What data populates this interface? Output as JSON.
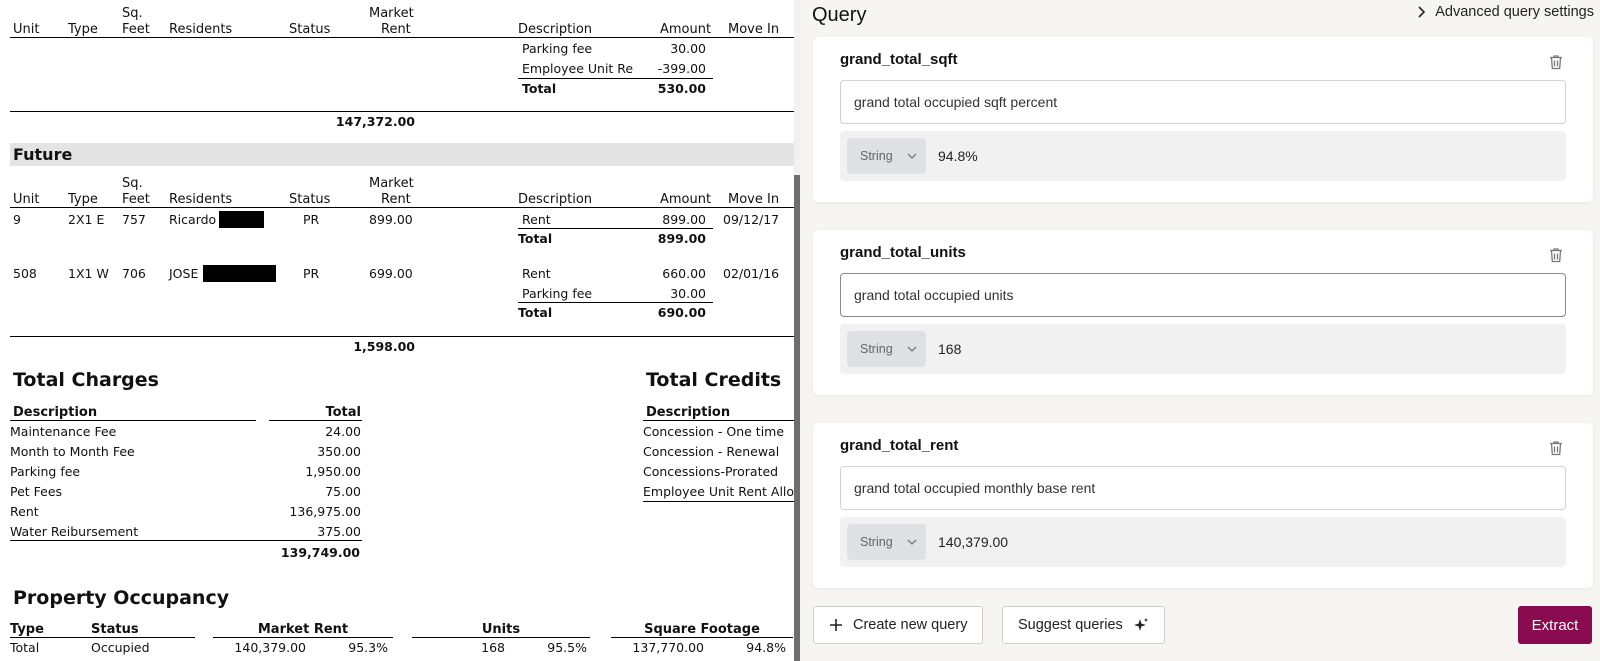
{
  "doc": {
    "top_headers": {
      "unit": "Unit",
      "type": "Type",
      "sqft_1": "Sq.",
      "sqft_2": "Feet",
      "residents": "Residents",
      "status": "Status",
      "mkt_1": "Market",
      "mkt_2": "Rent",
      "description": "Description",
      "amount": "Amount",
      "move_in": "Move In"
    },
    "top_charges": [
      {
        "desc": "Parking fee",
        "amount": "30.00"
      },
      {
        "desc": "Employee Unit Re",
        "amount": "-399.00"
      }
    ],
    "top_total": {
      "label": "Total",
      "amount": "530.00"
    },
    "top_subtotal": "147,372.00",
    "future_label": "Future",
    "future_rows": [
      {
        "unit": "9",
        "type": "2X1 E",
        "sqft": "757",
        "resident": "Ricardo",
        "status": "PR",
        "rent": "899.00",
        "charges": [
          {
            "desc": "Rent",
            "amount": "899.00",
            "move_in": "09/12/17"
          }
        ],
        "total": "899.00"
      },
      {
        "unit": "508",
        "type": "1X1 W",
        "sqft": "706",
        "resident": "JOSE",
        "status": "PR",
        "rent": "699.00",
        "charges": [
          {
            "desc": "Rent",
            "amount": "660.00",
            "move_in": "02/01/16"
          },
          {
            "desc": "Parking fee",
            "amount": "30.00",
            "move_in": ""
          }
        ],
        "total": "690.00"
      }
    ],
    "total_label": "Total",
    "future_subtotal": "1,598.00",
    "total_charges": {
      "title": "Total Charges",
      "col_desc": "Description",
      "col_total": "Total",
      "rows": [
        {
          "desc": "Maintenance Fee",
          "total": "24.00"
        },
        {
          "desc": "Month to Month Fee",
          "total": "350.00"
        },
        {
          "desc": "Parking fee",
          "total": "1,950.00"
        },
        {
          "desc": "Pet Fees",
          "total": "75.00"
        },
        {
          "desc": "Rent",
          "total": "136,975.00"
        },
        {
          "desc": "Water Reibursement",
          "total": "375.00"
        }
      ],
      "grand": "139,749.00"
    },
    "total_credits": {
      "title": "Total Credits",
      "col_desc": "Description",
      "rows": [
        "Concession - One time",
        "Concession - Renewal",
        "Concessions-Prorated",
        "Employee Unit Rent Allo"
      ]
    },
    "occupancy": {
      "title": "Property Occupancy",
      "headers": {
        "type": "Type",
        "status": "Status",
        "market_rent": "Market Rent",
        "units": "Units",
        "sqft": "Square Footage"
      },
      "row": {
        "type": "Total",
        "status": "Occupied",
        "market_rent": "140,379.00",
        "rent_pct": "95.3%",
        "units": "168",
        "units_pct": "95.5%",
        "sqft": "137,770.00",
        "sqft_pct": "94.8%"
      }
    }
  },
  "panel": {
    "title": "Query",
    "advanced_label": "Advanced query settings",
    "queries": [
      {
        "name": "grand_total_sqft",
        "prompt": "grand total occupied sqft percent",
        "type": "String",
        "result": "94.8%"
      },
      {
        "name": "grand_total_units",
        "prompt": "grand total occupied units",
        "type": "String",
        "result": "168"
      },
      {
        "name": "grand_total_rent",
        "prompt": "grand total occupied monthly base rent",
        "type": "String",
        "result": "140,379.00"
      }
    ],
    "create_label": "Create new query",
    "suggest_label": "Suggest queries",
    "extract_label": "Extract",
    "accent_color": "#8a0b4f"
  }
}
